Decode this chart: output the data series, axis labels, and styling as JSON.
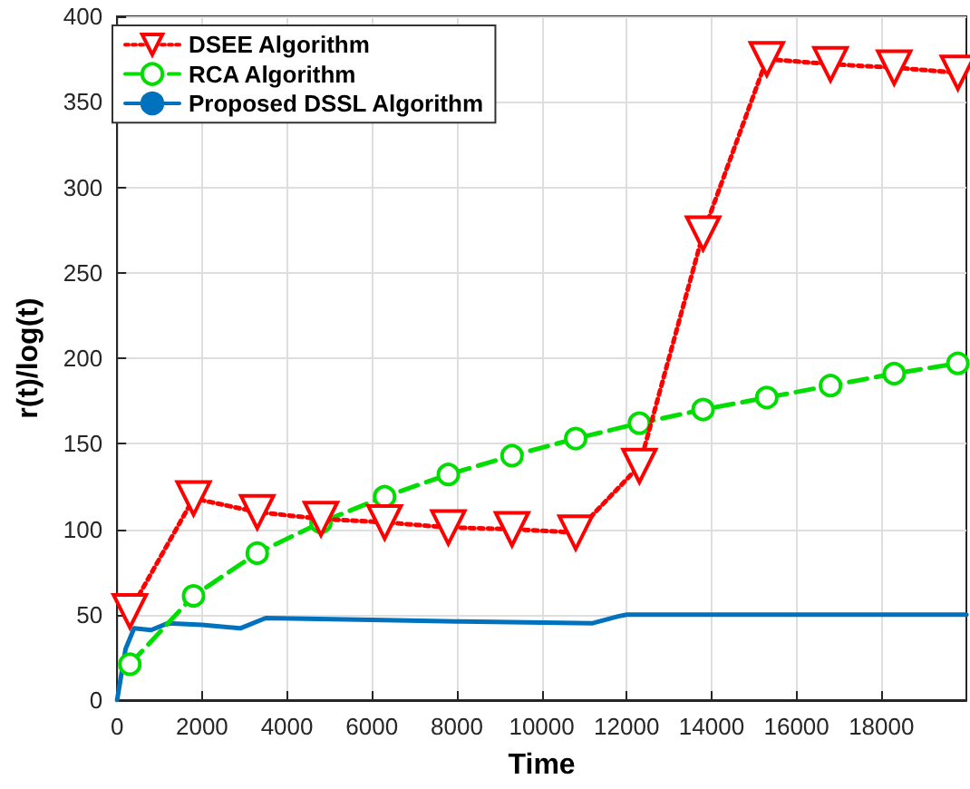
{
  "chart_data": {
    "type": "line",
    "xlabel": "Time",
    "ylabel": "r(t)/log(t)",
    "xlim": [
      0,
      20000
    ],
    "xticks": [
      0,
      2000,
      4000,
      6000,
      8000,
      10000,
      12000,
      14000,
      16000,
      18000
    ],
    "ylim": [
      0,
      400
    ],
    "yticks": [
      0,
      50,
      100,
      150,
      200,
      250,
      300,
      350,
      400
    ],
    "grid": true,
    "legend": "top left",
    "series": [
      {
        "name": "DSEE Algorithm",
        "color": "#ff0000",
        "marker": "triangle",
        "line_style": "dotted",
        "x": [
          300,
          1800,
          3300,
          4800,
          6300,
          7800,
          9300,
          10800,
          12300,
          13800,
          15300,
          16800,
          18300,
          19800
        ],
        "values": [
          52,
          118,
          110,
          106,
          104,
          101,
          100,
          98,
          137,
          273,
          375,
          372,
          370,
          367
        ]
      },
      {
        "name": "RCA Algorithm",
        "color": "#00dd00",
        "marker": "circle",
        "line_style": "dashed",
        "x": [
          300,
          1800,
          3300,
          4800,
          6300,
          7800,
          9300,
          10800,
          12300,
          13800,
          15300,
          16800,
          18300,
          19800
        ],
        "values": [
          21,
          61,
          86,
          104,
          119,
          132,
          143,
          153,
          162,
          170,
          177,
          184,
          191,
          197
        ]
      },
      {
        "name": "Proposed DSSL Algorithm",
        "color": "#0072bd",
        "marker": "none",
        "line_style": "solid",
        "x": [
          0,
          200,
          400,
          800,
          1200,
          2000,
          2900,
          3500,
          6000,
          8000,
          11200,
          11800,
          12000,
          16000,
          20000
        ],
        "values": [
          0,
          30,
          42,
          41,
          45,
          44,
          42,
          48,
          47,
          46,
          45,
          49,
          50,
          50,
          50
        ]
      }
    ]
  }
}
